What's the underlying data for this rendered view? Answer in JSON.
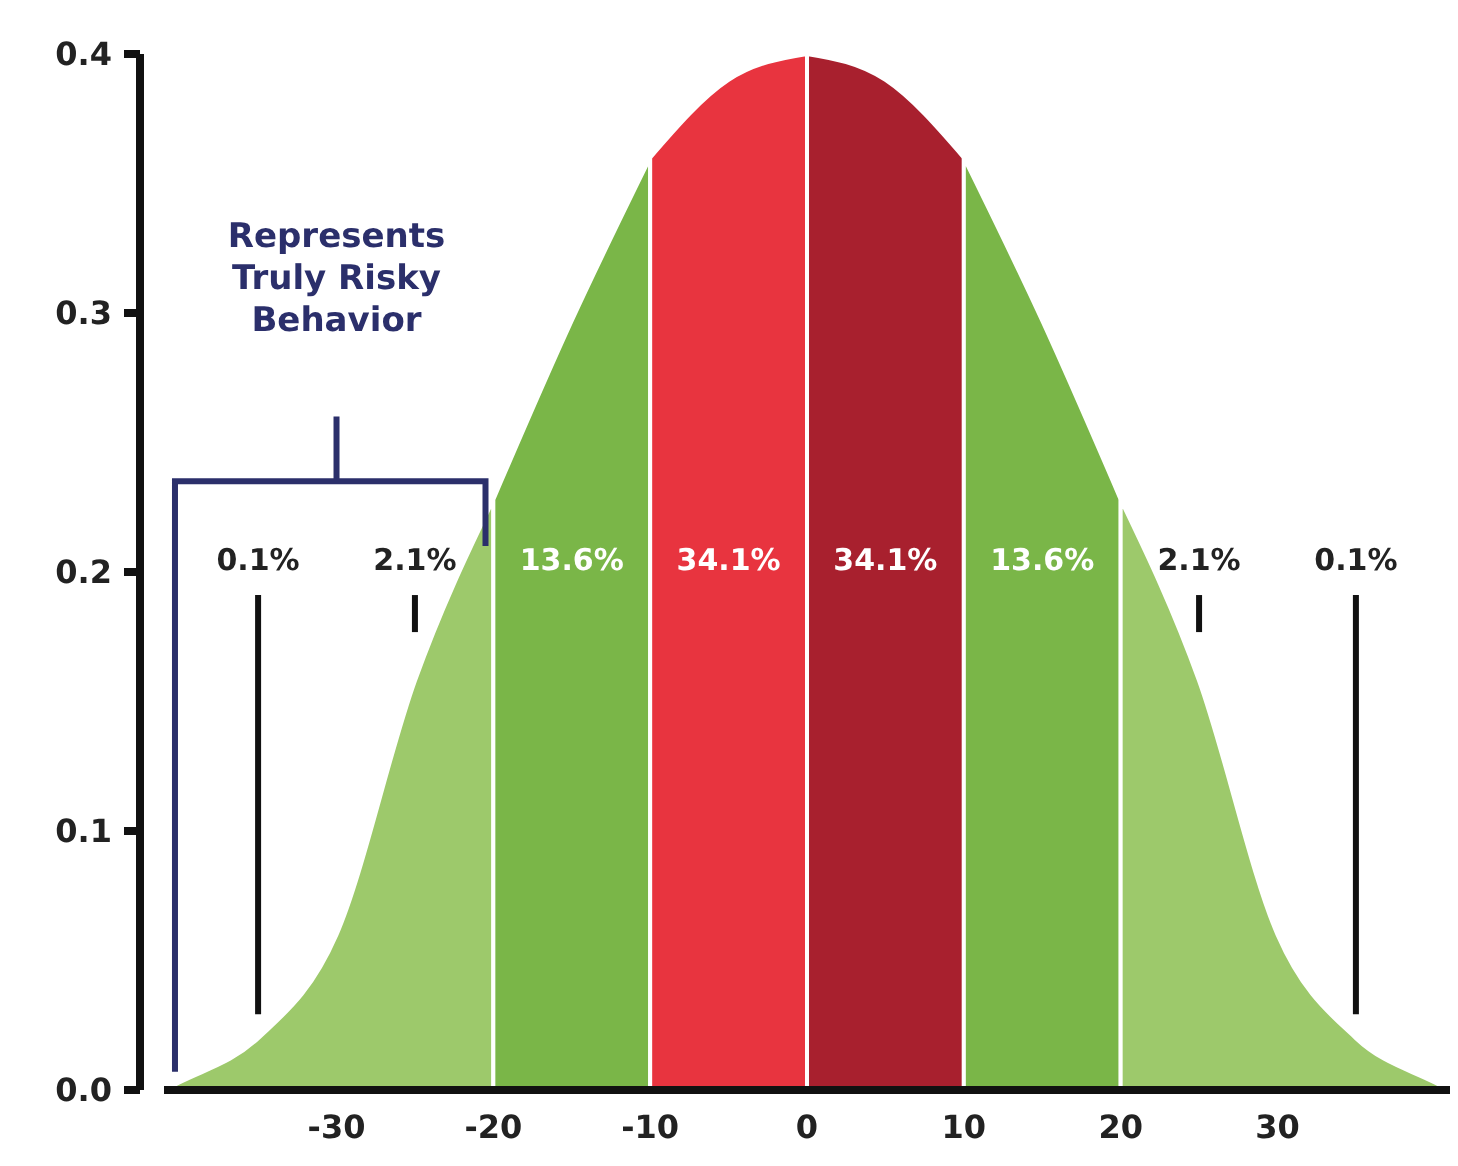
{
  "chart_data": {
    "type": "area",
    "xlim": [
      -41,
      41
    ],
    "ylim": [
      0,
      0.4
    ],
    "xticks": [
      -30,
      -20,
      -10,
      0,
      10,
      20,
      30
    ],
    "yticks": [
      {
        "value": 0,
        "label": "0.0"
      },
      {
        "value": 0.1,
        "label": "0.1"
      },
      {
        "value": 0.2,
        "label": "0.2"
      },
      {
        "value": 0.3,
        "label": "0.3"
      },
      {
        "value": 0.4,
        "label": "0.4"
      }
    ],
    "grid": false,
    "series": [
      {
        "color": "#9dc96b",
        "x": [
          -41,
          -40,
          -35,
          -30,
          -25,
          -20
        ],
        "values": [
          0,
          0.003,
          0.02,
          0.06,
          0.158,
          0.228
        ]
      },
      {
        "color": "#7ab648",
        "x": [
          -20,
          -15,
          -10
        ],
        "values": [
          0.228,
          0.297,
          0.36
        ]
      },
      {
        "color": "#e8343f",
        "x": [
          -10,
          -5,
          0
        ],
        "values": [
          0.36,
          0.39,
          0.4
        ]
      },
      {
        "color": "#a8202e",
        "x": [
          0,
          5,
          10
        ],
        "values": [
          0.4,
          0.39,
          0.36
        ]
      },
      {
        "color": "#7ab648",
        "x": [
          10,
          15,
          20
        ],
        "values": [
          0.36,
          0.297,
          0.228
        ]
      },
      {
        "color": "#9dc96b",
        "x": [
          20,
          25,
          30,
          35,
          40,
          41
        ],
        "values": [
          0.228,
          0.158,
          0.06,
          0.02,
          0.003,
          0
        ]
      }
    ],
    "annotations": [
      "0.1%",
      "2.1%",
      "13.6%",
      "34.1%",
      "34.1%",
      "13.6%",
      "2.1%",
      "0.1%",
      "Represents Truly Risky Behavior"
    ]
  }
}
